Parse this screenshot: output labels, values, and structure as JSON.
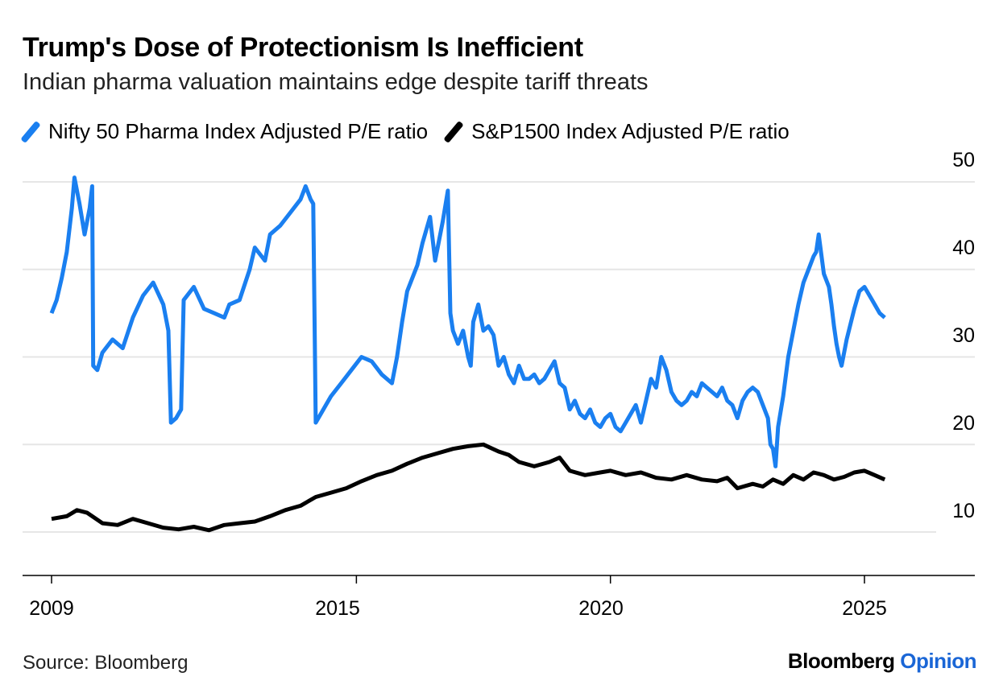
{
  "header": {
    "title": "Trump's Dose of Protectionism Is Inefficient",
    "subtitle": "Indian pharma valuation maintains edge despite tariff threats"
  },
  "footer": {
    "source": "Source: Bloomberg",
    "brand_main": "Bloomberg",
    "brand_accent": "Opinion"
  },
  "colors": {
    "pharma": "#1a7ff0",
    "sp1500": "#000000",
    "gridline": "#e6e6e6",
    "brand_accent": "#1a66d6"
  },
  "chart_data": {
    "type": "line",
    "title": "Trump's Dose of Protectionism Is Inefficient",
    "subtitle": "Indian pharma valuation maintains edge despite tariff threats",
    "xlabel": "",
    "ylabel": "",
    "xlim": [
      2009,
      2027.2
    ],
    "ylim": [
      5,
      50
    ],
    "x_ticks": [
      2009,
      2015,
      2020,
      2025
    ],
    "y_ticks": [
      10,
      20,
      30,
      40,
      50
    ],
    "y_axis_position": "right",
    "grid": true,
    "legend_position": "top-left",
    "series": [
      {
        "name": "Nifty 50 Pharma Index Adjusted P/E ratio",
        "color": "#1a7ff0",
        "points": [
          [
            2009.0,
            35.0
          ],
          [
            2009.1,
            36.5
          ],
          [
            2009.2,
            39.0
          ],
          [
            2009.3,
            42.0
          ],
          [
            2009.4,
            47.0
          ],
          [
            2009.45,
            50.5
          ],
          [
            2009.55,
            47.5
          ],
          [
            2009.65,
            44.0
          ],
          [
            2009.75,
            47.0
          ],
          [
            2009.8,
            49.5
          ],
          [
            2009.82,
            29.0
          ],
          [
            2009.9,
            28.5
          ],
          [
            2010.0,
            30.5
          ],
          [
            2010.2,
            32.0
          ],
          [
            2010.4,
            31.0
          ],
          [
            2010.6,
            34.5
          ],
          [
            2010.8,
            37.0
          ],
          [
            2011.0,
            38.5
          ],
          [
            2011.2,
            36.0
          ],
          [
            2011.3,
            33.0
          ],
          [
            2011.35,
            22.5
          ],
          [
            2011.45,
            23.0
          ],
          [
            2011.55,
            24.0
          ],
          [
            2011.6,
            36.5
          ],
          [
            2011.8,
            38.0
          ],
          [
            2012.0,
            35.5
          ],
          [
            2012.2,
            35.0
          ],
          [
            2012.4,
            34.5
          ],
          [
            2012.5,
            36.0
          ],
          [
            2012.7,
            36.5
          ],
          [
            2012.9,
            40.0
          ],
          [
            2013.0,
            42.5
          ],
          [
            2013.2,
            41.0
          ],
          [
            2013.3,
            44.0
          ],
          [
            2013.5,
            45.0
          ],
          [
            2013.7,
            46.5
          ],
          [
            2013.9,
            48.0
          ],
          [
            2014.0,
            49.5
          ],
          [
            2014.1,
            48.0
          ],
          [
            2014.15,
            47.5
          ],
          [
            2014.2,
            22.5
          ],
          [
            2014.3,
            23.5
          ],
          [
            2014.5,
            25.5
          ],
          [
            2014.7,
            27.0
          ],
          [
            2014.9,
            28.5
          ],
          [
            2015.1,
            30.0
          ],
          [
            2015.3,
            29.5
          ],
          [
            2015.5,
            28.0
          ],
          [
            2015.7,
            27.0
          ],
          [
            2015.8,
            30.0
          ],
          [
            2015.9,
            34.0
          ],
          [
            2016.0,
            37.5
          ],
          [
            2016.2,
            40.5
          ],
          [
            2016.3,
            43.0
          ],
          [
            2016.45,
            46.0
          ],
          [
            2016.55,
            41.0
          ],
          [
            2016.7,
            45.5
          ],
          [
            2016.8,
            49.0
          ],
          [
            2016.85,
            35.0
          ],
          [
            2016.9,
            33.0
          ],
          [
            2017.0,
            31.5
          ],
          [
            2017.1,
            33.0
          ],
          [
            2017.2,
            30.0
          ],
          [
            2017.25,
            29.0
          ],
          [
            2017.3,
            34.0
          ],
          [
            2017.4,
            36.0
          ],
          [
            2017.5,
            33.0
          ],
          [
            2017.6,
            33.5
          ],
          [
            2017.7,
            32.5
          ],
          [
            2017.8,
            29.0
          ],
          [
            2017.9,
            30.0
          ],
          [
            2018.0,
            28.0
          ],
          [
            2018.1,
            27.0
          ],
          [
            2018.2,
            29.0
          ],
          [
            2018.3,
            27.5
          ],
          [
            2018.4,
            27.5
          ],
          [
            2018.5,
            28.0
          ],
          [
            2018.6,
            27.0
          ],
          [
            2018.7,
            27.5
          ],
          [
            2018.8,
            28.5
          ],
          [
            2018.9,
            29.5
          ],
          [
            2019.0,
            27.0
          ],
          [
            2019.1,
            26.5
          ],
          [
            2019.2,
            24.0
          ],
          [
            2019.3,
            25.0
          ],
          [
            2019.4,
            23.5
          ],
          [
            2019.5,
            23.0
          ],
          [
            2019.6,
            24.0
          ],
          [
            2019.7,
            22.5
          ],
          [
            2019.8,
            22.0
          ],
          [
            2019.9,
            23.0
          ],
          [
            2020.0,
            23.5
          ],
          [
            2020.1,
            22.0
          ],
          [
            2020.2,
            21.5
          ],
          [
            2020.3,
            22.5
          ],
          [
            2020.4,
            23.5
          ],
          [
            2020.5,
            24.5
          ],
          [
            2020.6,
            22.5
          ],
          [
            2020.7,
            25.0
          ],
          [
            2020.8,
            27.5
          ],
          [
            2020.9,
            26.5
          ],
          [
            2021.0,
            30.0
          ],
          [
            2021.1,
            28.5
          ],
          [
            2021.2,
            26.0
          ],
          [
            2021.3,
            25.0
          ],
          [
            2021.4,
            24.5
          ],
          [
            2021.5,
            25.0
          ],
          [
            2021.6,
            26.0
          ],
          [
            2021.7,
            25.5
          ],
          [
            2021.8,
            27.0
          ],
          [
            2021.9,
            26.5
          ],
          [
            2022.0,
            26.0
          ],
          [
            2022.1,
            25.5
          ],
          [
            2022.2,
            26.5
          ],
          [
            2022.3,
            25.0
          ],
          [
            2022.4,
            24.5
          ],
          [
            2022.5,
            23.0
          ],
          [
            2022.6,
            25.0
          ],
          [
            2022.7,
            26.0
          ],
          [
            2022.8,
            26.5
          ],
          [
            2022.9,
            26.0
          ],
          [
            2023.0,
            24.5
          ],
          [
            2023.1,
            23.0
          ],
          [
            2023.15,
            20.0
          ],
          [
            2023.2,
            19.5
          ],
          [
            2023.25,
            17.5
          ],
          [
            2023.3,
            22.0
          ],
          [
            2023.4,
            25.5
          ],
          [
            2023.5,
            30.0
          ],
          [
            2023.6,
            33.0
          ],
          [
            2023.7,
            36.0
          ],
          [
            2023.8,
            38.5
          ],
          [
            2023.9,
            40.0
          ],
          [
            2024.0,
            41.5
          ],
          [
            2024.05,
            42.0
          ],
          [
            2024.1,
            44.0
          ],
          [
            2024.2,
            39.5
          ],
          [
            2024.3,
            38.0
          ],
          [
            2024.35,
            36.0
          ],
          [
            2024.4,
            33.5
          ],
          [
            2024.45,
            31.5
          ],
          [
            2024.5,
            30.0
          ],
          [
            2024.55,
            29.0
          ],
          [
            2024.65,
            32.0
          ],
          [
            2024.8,
            35.5
          ],
          [
            2024.9,
            37.5
          ],
          [
            2025.0,
            38.0
          ],
          [
            2025.15,
            36.5
          ],
          [
            2025.3,
            35.0
          ],
          [
            2025.4,
            34.5
          ]
        ]
      },
      {
        "name": "S&P1500 Index Adjusted P/E ratio",
        "color": "#000000",
        "points": [
          [
            2009.0,
            11.5
          ],
          [
            2009.3,
            11.8
          ],
          [
            2009.5,
            12.5
          ],
          [
            2009.7,
            12.2
          ],
          [
            2010.0,
            11.0
          ],
          [
            2010.3,
            10.8
          ],
          [
            2010.6,
            11.5
          ],
          [
            2010.9,
            11.0
          ],
          [
            2011.2,
            10.5
          ],
          [
            2011.5,
            10.3
          ],
          [
            2011.8,
            10.6
          ],
          [
            2012.1,
            10.2
          ],
          [
            2012.4,
            10.8
          ],
          [
            2012.7,
            11.0
          ],
          [
            2013.0,
            11.2
          ],
          [
            2013.3,
            11.8
          ],
          [
            2013.6,
            12.5
          ],
          [
            2013.9,
            13.0
          ],
          [
            2014.2,
            14.0
          ],
          [
            2014.5,
            14.5
          ],
          [
            2014.8,
            15.0
          ],
          [
            2015.1,
            15.8
          ],
          [
            2015.4,
            16.5
          ],
          [
            2015.7,
            17.0
          ],
          [
            2016.0,
            17.8
          ],
          [
            2016.3,
            18.5
          ],
          [
            2016.6,
            19.0
          ],
          [
            2016.9,
            19.5
          ],
          [
            2017.2,
            19.8
          ],
          [
            2017.5,
            20.0
          ],
          [
            2017.8,
            19.2
          ],
          [
            2018.0,
            18.8
          ],
          [
            2018.2,
            18.0
          ],
          [
            2018.5,
            17.5
          ],
          [
            2018.8,
            18.0
          ],
          [
            2019.0,
            18.5
          ],
          [
            2019.2,
            17.0
          ],
          [
            2019.5,
            16.5
          ],
          [
            2019.8,
            16.8
          ],
          [
            2020.0,
            17.0
          ],
          [
            2020.3,
            16.5
          ],
          [
            2020.6,
            16.8
          ],
          [
            2020.9,
            16.2
          ],
          [
            2021.2,
            16.0
          ],
          [
            2021.5,
            16.5
          ],
          [
            2021.8,
            16.0
          ],
          [
            2022.1,
            15.8
          ],
          [
            2022.3,
            16.2
          ],
          [
            2022.5,
            15.0
          ],
          [
            2022.8,
            15.5
          ],
          [
            2023.0,
            15.2
          ],
          [
            2023.2,
            16.0
          ],
          [
            2023.4,
            15.5
          ],
          [
            2023.6,
            16.5
          ],
          [
            2023.8,
            16.0
          ],
          [
            2024.0,
            16.8
          ],
          [
            2024.2,
            16.5
          ],
          [
            2024.4,
            16.0
          ],
          [
            2024.6,
            16.3
          ],
          [
            2024.8,
            16.8
          ],
          [
            2025.0,
            17.0
          ],
          [
            2025.2,
            16.5
          ],
          [
            2025.4,
            16.0
          ]
        ]
      }
    ]
  },
  "labels": {
    "legend_pharma": "Nifty 50 Pharma Index Adjusted P/E ratio",
    "legend_sp": "S&P1500 Index Adjusted P/E ratio",
    "y10": "10",
    "y20": "20",
    "y30": "30",
    "y40": "40",
    "y50": "50",
    "x2009": "2009",
    "x2015": "2015",
    "x2020": "2020",
    "x2025": "2025"
  }
}
